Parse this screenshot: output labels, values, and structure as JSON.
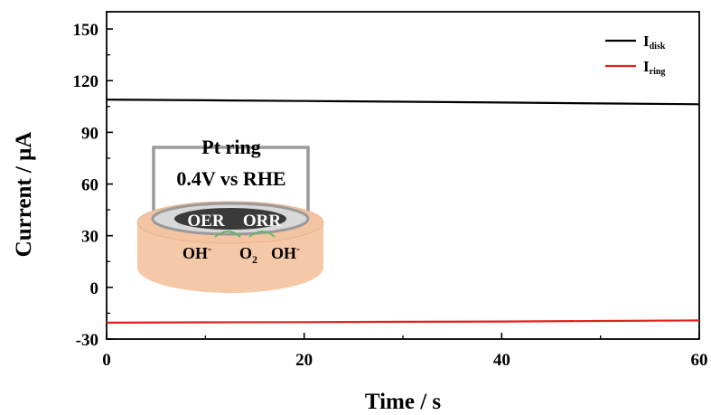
{
  "chart_data": {
    "type": "line",
    "xlabel": "Time / s",
    "ylabel": "Current / μA",
    "xlim": [
      0,
      60
    ],
    "ylim": [
      -30,
      160
    ],
    "x_ticks": [
      "0",
      "20",
      "40",
      "60"
    ],
    "y_ticks": [
      "-30",
      "0",
      "30",
      "60",
      "90",
      "120",
      "150"
    ],
    "grid": false,
    "legend_position": "top-right",
    "series": [
      {
        "name": "I",
        "subscript": "disk",
        "color": "#000000",
        "x": [
          0,
          10,
          20,
          30,
          40,
          50,
          60
        ],
        "y": [
          109,
          108.6,
          108.2,
          107.8,
          107.3,
          106.8,
          106.3
        ]
      },
      {
        "name": "I",
        "subscript": "ring",
        "color": "#e02020",
        "x": [
          0,
          10,
          20,
          30,
          40,
          50,
          60
        ],
        "y": [
          -20.5,
          -20.3,
          -20.2,
          -20.0,
          -19.8,
          -19.5,
          -19.2
        ]
      }
    ]
  },
  "inset": {
    "label_line1": "Pt ring",
    "label_line2": "0.4V vs RHE",
    "left_text": "OER",
    "right_text": "ORR",
    "species_left": "OH",
    "species_left_sup": "-",
    "species_mid": "O",
    "species_mid_sub": "2",
    "species_right": "OH",
    "species_right_sup": "-",
    "cylinder_color": "#f5c9a8",
    "ring_color": "#9a9a9a",
    "disk_color": "#3a3a3a"
  }
}
